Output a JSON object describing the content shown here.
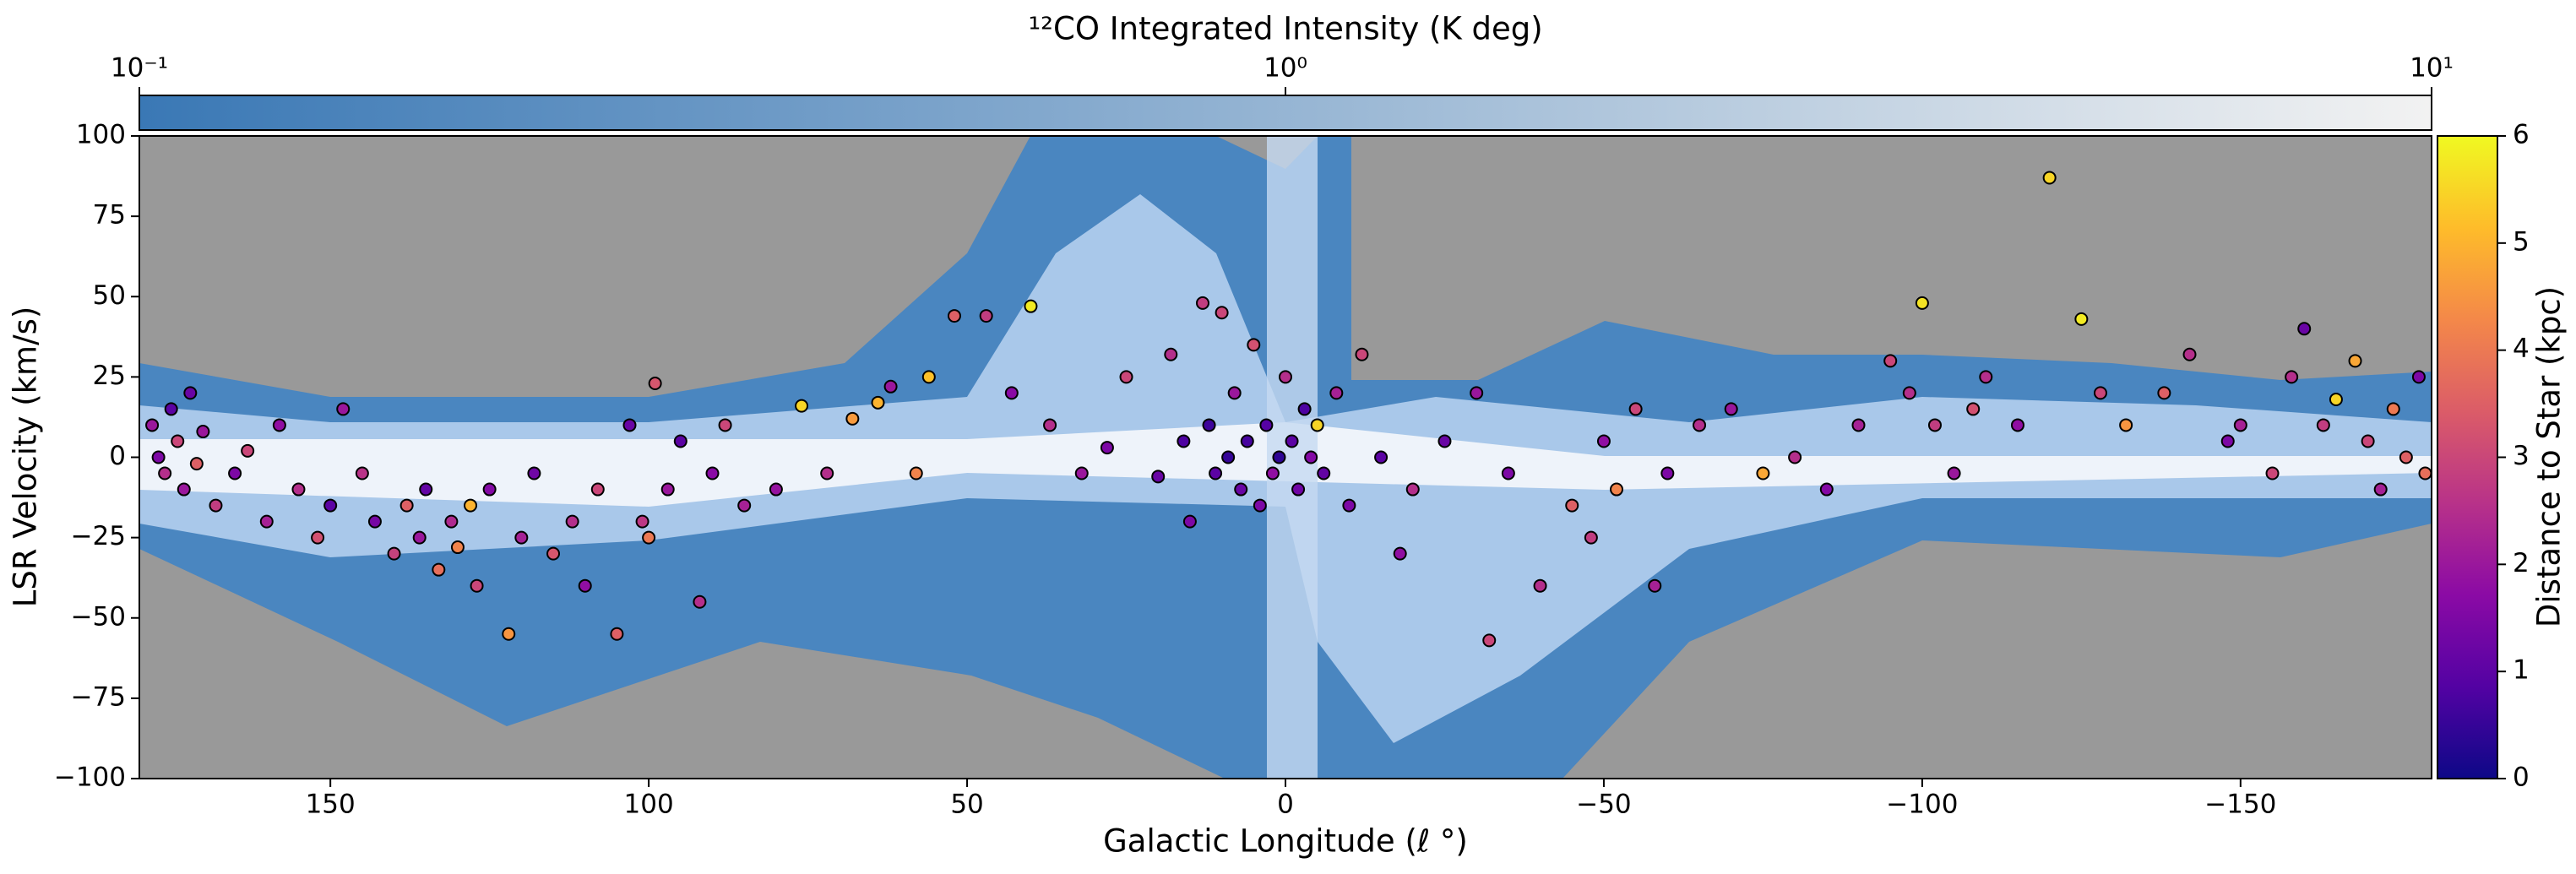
{
  "chart_data": {
    "type": "scatter",
    "title": "¹²CO Integrated Intensity (K deg)",
    "x_label": "Galactic Longitude (ℓ °)",
    "y_label": "LSR Velocity (km/s)",
    "xlim": [
      180,
      -180
    ],
    "xticks": [
      150,
      100,
      50,
      0,
      {
        "value": -50,
        "label": "−50"
      },
      {
        "value": -100,
        "label": "−100"
      },
      {
        "value": -150,
        "label": "−150"
      }
    ],
    "ylim": [
      -100,
      100
    ],
    "yticks": [
      {
        "value": -100,
        "label": "−100"
      },
      {
        "value": -75,
        "label": "−75"
      },
      {
        "value": -50,
        "label": "−50"
      },
      {
        "value": -25,
        "label": "−25"
      },
      0,
      25,
      50,
      75,
      100
    ],
    "background_color": "#999999",
    "colorbar_top": {
      "log_scale": true,
      "lim": [
        0.1,
        10
      ],
      "ticks": [
        {
          "value": 0.1,
          "label": "10⁻¹"
        },
        {
          "value": 1,
          "label": "10⁰"
        },
        {
          "value": 10,
          "label": "10¹"
        }
      ],
      "colors": [
        "#3a78b5",
        "#f2f2f2"
      ]
    },
    "colorbar": {
      "label": "Distance to Star (kpc)",
      "cmap": "plasma",
      "lim": [
        0,
        6
      ],
      "ticks": [
        0,
        1,
        2,
        3,
        4,
        5,
        6
      ]
    },
    "x": [
      178,
      177,
      176,
      175,
      174,
      173,
      172,
      171,
      170,
      168,
      165,
      163,
      160,
      158,
      155,
      152,
      150,
      148,
      145,
      143,
      140,
      138,
      136,
      135,
      133,
      131,
      130,
      128,
      127,
      125,
      122,
      120,
      118,
      115,
      112,
      110,
      108,
      105,
      103,
      101,
      100,
      99,
      97,
      95,
      92,
      90,
      88,
      85,
      80,
      76,
      72,
      68,
      64,
      62,
      58,
      56,
      52,
      47,
      43,
      40,
      37,
      32,
      28,
      25,
      20,
      18,
      16,
      15,
      13,
      12,
      11,
      10,
      9,
      8,
      7,
      6,
      5,
      4,
      3,
      2,
      1,
      0,
      -1,
      -2,
      -3,
      -4,
      -5,
      -6,
      -8,
      -10,
      -12,
      -15,
      -18,
      -20,
      -25,
      -30,
      -32,
      -35,
      -40,
      -45,
      -48,
      -50,
      -52,
      -55,
      -58,
      -60,
      -65,
      -70,
      -75,
      -80,
      -85,
      -90,
      -95,
      -98,
      -100,
      -102,
      -105,
      -108,
      -110,
      -115,
      -120,
      -125,
      -128,
      -132,
      -138,
      -142,
      -148,
      -150,
      -155,
      -158,
      -160,
      -163,
      -165,
      -168,
      -170,
      -172,
      -174,
      -176,
      -178,
      -179
    ],
    "values": [
      10,
      0,
      -5,
      15,
      5,
      -10,
      20,
      -2,
      8,
      -15,
      -5,
      2,
      -20,
      10,
      -10,
      -25,
      -15,
      15,
      -5,
      -20,
      -30,
      -15,
      -25,
      -10,
      -35,
      -20,
      -28,
      -15,
      -40,
      -10,
      -55,
      -25,
      -5,
      -30,
      -20,
      -40,
      -10,
      -55,
      10,
      -20,
      -25,
      23,
      -10,
      5,
      -45,
      -5,
      10,
      -15,
      -10,
      16,
      -5,
      12,
      17,
      22,
      -5,
      25,
      44,
      44,
      20,
      47,
      10,
      -5,
      3,
      25,
      -6,
      32,
      5,
      -20,
      48,
      10,
      -5,
      45,
      0,
      20,
      -10,
      5,
      35,
      -15,
      10,
      -5,
      0,
      25,
      5,
      -10,
      15,
      0,
      10,
      -5,
      20,
      -15,
      32,
      0,
      -30,
      -10,
      5,
      20,
      -57,
      -5,
      -40,
      -15,
      -25,
      5,
      -10,
      15,
      -40,
      -5,
      10,
      15,
      -5,
      0,
      -10,
      10,
      30,
      20,
      48,
      10,
      -5,
      15,
      25,
      10,
      87,
      43,
      20,
      10,
      20,
      32,
      5,
      10,
      -5,
      25,
      40,
      10,
      18,
      30,
      5,
      -10,
      15,
      0,
      25,
      -5
    ],
    "color_values": [
      2,
      1.5,
      2.5,
      1,
      3,
      2,
      1.2,
      3.5,
      2,
      2.8,
      1.5,
      3,
      2.2,
      1.8,
      2.5,
      3.2,
      1,
      2,
      2.6,
      1.4,
      2.9,
      3.5,
      2,
      1.1,
      3.8,
      2.4,
      4.2,
      5,
      3,
      1.6,
      4.5,
      2.2,
      1.3,
      3.3,
      2.5,
      1.8,
      3,
      3.5,
      1.2,
      2.7,
      4,
      3.3,
      2,
      1,
      2.5,
      1.7,
      3,
      2.2,
      1.9,
      5.5,
      2.5,
      4.6,
      5,
      2,
      4.2,
      5.2,
      3.5,
      2.8,
      1.7,
      5.8,
      2.5,
      2,
      1.5,
      3,
      1.2,
      2.5,
      0.8,
      1.5,
      2.8,
      0.6,
      1,
      3,
      0.5,
      2,
      1.2,
      0.7,
      3.2,
      1.5,
      0.9,
      1.8,
      0.4,
      2.5,
      1,
      1.3,
      0.8,
      1.6,
      5.5,
      1.1,
      2.2,
      1.5,
      3,
      1,
      1.8,
      2.5,
      1.2,
      2,
      3,
      1.5,
      2.5,
      3.5,
      2.8,
      1.8,
      4.2,
      3,
      2.2,
      1.5,
      2.5,
      2,
      4.8,
      2.5,
      1.6,
      2.2,
      3,
      2.5,
      5.7,
      2.8,
      2,
      3.2,
      2.5,
      1.8,
      5.5,
      5.8,
      3,
      4.5,
      3.5,
      2.5,
      1.5,
      2.2,
      3,
      2.5,
      1.2,
      2.8,
      5.5,
      4.8,
      3,
      2.2,
      4,
      3.5,
      1.5,
      3.8
    ]
  }
}
